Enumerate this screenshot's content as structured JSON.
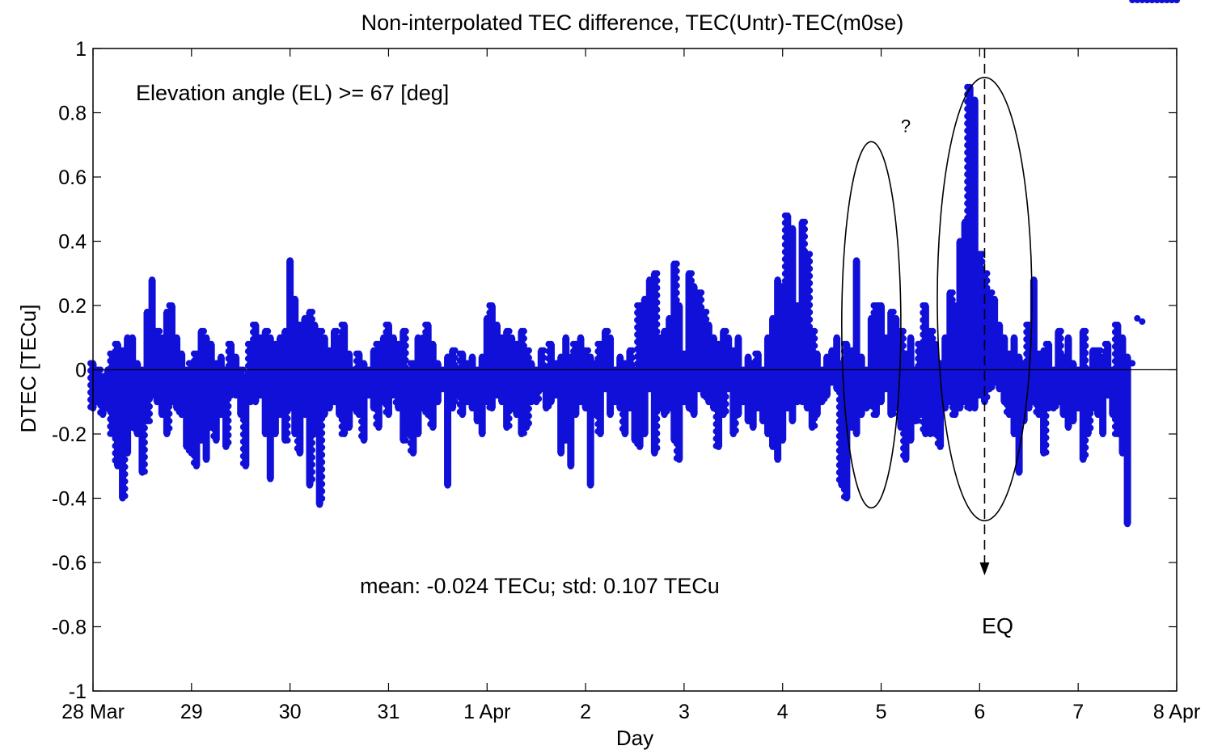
{
  "chart_data": {
    "type": "scatter",
    "title": "Non-interpolated TEC difference, TEC(Untr)-TEC(m0se)",
    "xlabel": "Day",
    "ylabel": "DTEC [TECu]",
    "xlim": [
      0,
      11
    ],
    "ylim": [
      -1,
      1
    ],
    "x_ticks": [
      {
        "value": 0,
        "label": "28 Mar"
      },
      {
        "value": 1,
        "label": "29"
      },
      {
        "value": 2,
        "label": "30"
      },
      {
        "value": 3,
        "label": "31"
      },
      {
        "value": 4,
        "label": "1 Apr"
      },
      {
        "value": 5,
        "label": "2"
      },
      {
        "value": 6,
        "label": "3"
      },
      {
        "value": 7,
        "label": "4"
      },
      {
        "value": 8,
        "label": "5"
      },
      {
        "value": 9,
        "label": "6"
      },
      {
        "value": 10,
        "label": "7"
      },
      {
        "value": 11,
        "label": "8 Apr"
      }
    ],
    "y_ticks": [
      {
        "value": 1,
        "label": "1"
      },
      {
        "value": 0.8,
        "label": "0.8"
      },
      {
        "value": 0.6,
        "label": "0.6"
      },
      {
        "value": 0.4,
        "label": "0.4"
      },
      {
        "value": 0.2,
        "label": "0.2"
      },
      {
        "value": 0,
        "label": "0"
      },
      {
        "value": -0.2,
        "label": "-0.2"
      },
      {
        "value": -0.4,
        "label": "-0.4"
      },
      {
        "value": -0.6,
        "label": "-0.6"
      },
      {
        "value": -0.8,
        "label": "-0.8"
      },
      {
        "value": -1,
        "label": "-1"
      }
    ],
    "grid": false,
    "marker_color": "#1010d8",
    "zero_line": true,
    "series": [
      {
        "name": "",
        "x": [
          0.0,
          0.05,
          0.1,
          0.15,
          0.2,
          0.25,
          0.3,
          0.35,
          0.4,
          0.45,
          0.5,
          0.55,
          0.6,
          0.65,
          0.7,
          0.75,
          0.8,
          0.85,
          0.9,
          0.95,
          1.0,
          1.05,
          1.1,
          1.15,
          1.2,
          1.25,
          1.3,
          1.35,
          1.4,
          1.45,
          1.5,
          1.55,
          1.6,
          1.65,
          1.7,
          1.75,
          1.8,
          1.85,
          1.9,
          1.95,
          2.0,
          2.05,
          2.1,
          2.15,
          2.2,
          2.25,
          2.3,
          2.35,
          2.4,
          2.45,
          2.5,
          2.55,
          2.6,
          2.65,
          2.7,
          2.75,
          2.8,
          2.85,
          2.9,
          2.95,
          3.0,
          3.05,
          3.1,
          3.15,
          3.2,
          3.25,
          3.3,
          3.35,
          3.4,
          3.45,
          3.5,
          3.55,
          3.6,
          3.65,
          3.7,
          3.75,
          3.8,
          3.85,
          3.9,
          3.95,
          4.0,
          4.05,
          4.1,
          4.15,
          4.2,
          4.25,
          4.3,
          4.35,
          4.4,
          4.45,
          4.5,
          4.55,
          4.6,
          4.65,
          4.7,
          4.75,
          4.8,
          4.85,
          4.9,
          4.95,
          5.0,
          5.05,
          5.1,
          5.15,
          5.2,
          5.25,
          5.3,
          5.35,
          5.4,
          5.45,
          5.5,
          5.55,
          5.6,
          5.65,
          5.7,
          5.75,
          5.8,
          5.85,
          5.9,
          5.95,
          6.0,
          6.05,
          6.1,
          6.15,
          6.2,
          6.25,
          6.3,
          6.35,
          6.4,
          6.45,
          6.5,
          6.55,
          6.6,
          6.65,
          6.7,
          6.75,
          6.8,
          6.85,
          6.9,
          6.95,
          7.0,
          7.05,
          7.1,
          7.15,
          7.2,
          7.25,
          7.3,
          7.35,
          7.4,
          7.45,
          7.5,
          7.55,
          7.6,
          7.65,
          7.7,
          7.75,
          7.8,
          7.85,
          7.9,
          7.95,
          8.0,
          8.05,
          8.1,
          8.15,
          8.2,
          8.25,
          8.3,
          8.35,
          8.4,
          8.45,
          8.5,
          8.55,
          8.6,
          8.65,
          8.7,
          8.75,
          8.8,
          8.85,
          8.9,
          8.95,
          9.0,
          9.05,
          9.1,
          9.15,
          9.2,
          9.25,
          9.3,
          9.35,
          9.4,
          9.45,
          9.5,
          9.55,
          9.6,
          9.65,
          9.7,
          9.75,
          9.8,
          9.85,
          9.9,
          9.95,
          10.0,
          10.05,
          10.1,
          10.15,
          10.2,
          10.25,
          10.3,
          10.35,
          10.4,
          10.45,
          10.5,
          10.55,
          10.6,
          10.65,
          10.7,
          10.75,
          10.8,
          10.85,
          10.9,
          10.95,
          11.0
        ],
        "y_max": [
          0.02,
          0.0,
          -0.02,
          0.0,
          0.05,
          0.08,
          0.06,
          0.1,
          0.1,
          0.02,
          0.0,
          0.18,
          0.28,
          0.12,
          0.1,
          0.18,
          0.2,
          0.1,
          0.05,
          0.0,
          0.02,
          0.05,
          0.12,
          0.1,
          0.08,
          0.02,
          0.04,
          0.0,
          0.08,
          0.04,
          0.0,
          -0.02,
          0.08,
          0.14,
          0.1,
          0.12,
          0.1,
          0.08,
          0.1,
          0.12,
          0.34,
          0.22,
          0.14,
          0.16,
          0.18,
          0.14,
          0.12,
          0.1,
          0.06,
          0.12,
          0.1,
          0.14,
          0.05,
          0.0,
          0.05,
          0.02,
          0.0,
          0.06,
          0.08,
          0.1,
          0.14,
          0.1,
          0.08,
          0.12,
          0.0,
          0.02,
          0.1,
          0.1,
          0.14,
          0.08,
          0.02,
          0.0,
          0.04,
          0.06,
          0.0,
          0.05,
          0.02,
          0.04,
          0.0,
          0.04,
          0.16,
          0.2,
          0.14,
          0.1,
          0.12,
          0.1,
          0.08,
          0.12,
          0.06,
          0.02,
          0.0,
          0.06,
          0.0,
          0.08,
          0.02,
          0.04,
          0.1,
          0.04,
          0.08,
          0.1,
          0.06,
          0.04,
          0.02,
          0.08,
          0.12,
          0.1,
          0.0,
          0.04,
          0.02,
          0.06,
          0.0,
          0.2,
          0.22,
          0.28,
          0.3,
          0.1,
          0.12,
          0.16,
          0.33,
          0.2,
          0.05,
          0.3,
          0.26,
          0.24,
          0.18,
          0.14,
          0.1,
          0.08,
          0.12,
          0.1,
          0.06,
          0.1,
          0.0,
          0.04,
          0.02,
          0.05,
          0.0,
          0.1,
          0.16,
          0.28,
          0.26,
          0.48,
          0.44,
          0.2,
          0.46,
          0.36,
          0.12,
          0.05,
          0.0,
          0.04,
          0.06,
          0.1,
          0.02,
          0.08,
          0.06,
          0.34,
          0.04,
          0.0,
          0.16,
          0.2,
          0.2,
          0.1,
          0.18,
          0.16,
          0.12,
          0.05,
          0.1,
          0.0,
          0.08,
          0.2,
          0.12,
          0.08,
          0.02,
          0.1,
          0.24,
          0.2,
          0.4,
          0.46,
          0.88,
          0.84,
          0.36,
          0.3,
          0.24,
          0.22,
          0.14,
          0.1,
          0.05,
          0.1,
          0.04,
          0.02,
          0.14,
          0.28,
          0.05,
          0.06,
          0.08,
          0.0,
          0.12,
          0.04,
          0.1,
          0.02,
          0.0,
          0.12,
          0.0,
          0.06,
          0.06,
          0.04,
          0.08,
          0.0,
          0.14,
          0.1,
          0.04,
          0.02,
          0.16,
          0.15
        ],
        "y_min": [
          -0.12,
          -0.1,
          -0.14,
          -0.12,
          -0.2,
          -0.3,
          -0.4,
          -0.26,
          -0.18,
          -0.2,
          -0.32,
          -0.16,
          -0.08,
          -0.1,
          -0.14,
          -0.2,
          -0.1,
          -0.12,
          -0.14,
          -0.24,
          -0.26,
          -0.3,
          -0.22,
          -0.28,
          -0.18,
          -0.22,
          -0.14,
          -0.24,
          -0.08,
          -0.08,
          -0.14,
          -0.3,
          -0.1,
          -0.1,
          -0.08,
          -0.2,
          -0.34,
          -0.2,
          -0.14,
          -0.22,
          -0.12,
          -0.2,
          -0.26,
          -0.14,
          -0.36,
          -0.2,
          -0.42,
          -0.14,
          -0.12,
          -0.1,
          -0.14,
          -0.2,
          -0.18,
          -0.12,
          -0.14,
          -0.22,
          -0.08,
          -0.12,
          -0.18,
          -0.1,
          -0.14,
          -0.08,
          -0.12,
          -0.22,
          -0.2,
          -0.26,
          -0.2,
          -0.12,
          -0.14,
          -0.18,
          -0.1,
          -0.06,
          -0.36,
          -0.12,
          -0.08,
          -0.14,
          -0.1,
          -0.12,
          -0.16,
          -0.2,
          -0.1,
          -0.12,
          -0.08,
          -0.1,
          -0.18,
          -0.12,
          -0.14,
          -0.2,
          -0.18,
          -0.1,
          -0.1,
          -0.06,
          -0.12,
          -0.1,
          -0.08,
          -0.26,
          -0.22,
          -0.3,
          -0.14,
          -0.1,
          -0.12,
          -0.36,
          -0.14,
          -0.2,
          -0.06,
          -0.14,
          -0.1,
          -0.12,
          -0.2,
          -0.12,
          -0.22,
          -0.24,
          -0.2,
          -0.06,
          -0.26,
          -0.12,
          -0.14,
          -0.12,
          -0.22,
          -0.28,
          -0.1,
          -0.12,
          -0.14,
          -0.06,
          -0.08,
          -0.1,
          -0.12,
          -0.24,
          -0.14,
          -0.06,
          -0.2,
          -0.14,
          -0.1,
          -0.16,
          -0.18,
          -0.12,
          -0.16,
          -0.2,
          -0.24,
          -0.28,
          -0.22,
          -0.12,
          -0.16,
          -0.1,
          -0.1,
          -0.12,
          -0.18,
          -0.14,
          -0.1,
          -0.08,
          -0.04,
          -0.06,
          -0.36,
          -0.4,
          -0.18,
          -0.2,
          -0.14,
          -0.12,
          -0.1,
          -0.14,
          -0.1,
          -0.06,
          -0.14,
          -0.12,
          -0.18,
          -0.28,
          -0.22,
          -0.16,
          -0.14,
          -0.2,
          -0.2,
          -0.2,
          -0.24,
          -0.12,
          -0.1,
          -0.14,
          -0.12,
          -0.1,
          -0.12,
          -0.12,
          -0.08,
          -0.1,
          -0.06,
          -0.04,
          -0.06,
          -0.1,
          -0.14,
          -0.2,
          -0.32,
          -0.16,
          -0.12,
          -0.1,
          -0.14,
          -0.26,
          -0.12,
          -0.12,
          -0.1,
          -0.14,
          -0.18,
          -0.16,
          -0.12,
          -0.28,
          -0.2,
          -0.12,
          -0.14,
          -0.2,
          -0.08,
          -0.14,
          -0.2,
          -0.26,
          -0.48
        ]
      }
    ],
    "annotations": {
      "elevation_text": "Elevation angle (EL) >= 67 [deg]",
      "stats_text": "mean:  -0.024 TECu;  std:   0.107  TECu",
      "eq_label": "EQ",
      "eq_x": 9.05,
      "question_mark": "?",
      "ellipses": [
        {
          "cx": 7.9,
          "cy": 0.14,
          "rx": 0.3,
          "ry": 0.57
        },
        {
          "cx": 9.05,
          "cy": 0.22,
          "rx": 0.48,
          "ry": 0.69
        }
      ]
    }
  }
}
